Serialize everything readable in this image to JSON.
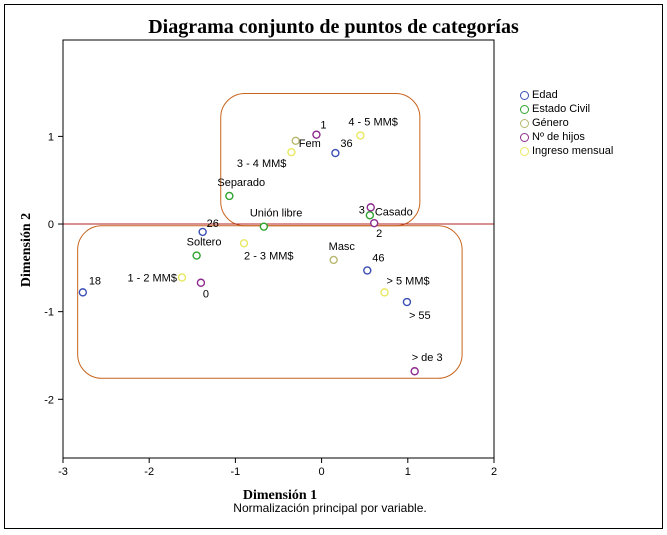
{
  "chart_data": {
    "type": "scatter",
    "title": "Diagrama conjunto de puntos de categorías",
    "subtitle": "Normalización principal por variable.",
    "xlabel": "Dimensión 1",
    "ylabel": "Dimensión 2",
    "xlim": [
      -3,
      2
    ],
    "ylim": [
      -2.67,
      2.1
    ],
    "xticks": [
      -3,
      -2,
      -1,
      0,
      1,
      2
    ],
    "yticks": [
      -2,
      -1,
      0,
      1
    ],
    "reference_line_y": 0,
    "reference_line_color": "#b22222",
    "legend_position": "right",
    "series": [
      {
        "name": "Edad",
        "color": "#3a4fb5",
        "points": [
          {
            "label": "18",
            "x": -2.77,
            "y": -0.78
          },
          {
            "label": "26",
            "x": -1.38,
            "y": -0.09
          },
          {
            "label": "36",
            "x": 0.16,
            "y": 0.81
          },
          {
            "label": "46",
            "x": 0.53,
            "y": -0.53
          },
          {
            "label": "> 55",
            "x": 0.99,
            "y": -0.89
          }
        ]
      },
      {
        "name": "Estado Civil",
        "color": "#2ea42e",
        "points": [
          {
            "label": "Separado",
            "x": -1.07,
            "y": 0.32
          },
          {
            "label": "Unión libre",
            "x": -0.67,
            "y": -0.03
          },
          {
            "label": "Soltero",
            "x": -1.45,
            "y": -0.36
          },
          {
            "label": "Casado",
            "x": 0.56,
            "y": 0.1
          }
        ]
      },
      {
        "name": "Género",
        "color": "#b8b870",
        "points": [
          {
            "label": "Fem",
            "x": -0.3,
            "y": 0.95
          },
          {
            "label": "Masc",
            "x": 0.14,
            "y": -0.41
          }
        ]
      },
      {
        "name": "Nº de hijos",
        "color": "#8e2a8e",
        "points": [
          {
            "label": "1",
            "x": -0.06,
            "y": 1.02
          },
          {
            "label": "3",
            "x": 0.57,
            "y": 0.19
          },
          {
            "label": "2",
            "x": 0.61,
            "y": 0.01
          },
          {
            "label": "0",
            "x": -1.4,
            "y": -0.67
          },
          {
            "label": "> de 3",
            "x": 1.08,
            "y": -1.68
          }
        ]
      },
      {
        "name": "Ingreso mensual",
        "color": "#e8e860",
        "points": [
          {
            "label": "4 - 5 MM$",
            "x": 0.45,
            "y": 1.01
          },
          {
            "label": "3 - 4 MM$",
            "x": -0.35,
            "y": 0.82
          },
          {
            "label": "2 - 3 MM$",
            "x": -0.9,
            "y": -0.22
          },
          {
            "label": "1 - 2 MM$",
            "x": -1.62,
            "y": -0.61
          },
          {
            "label": "> 5 MM$",
            "x": 0.73,
            "y": -0.78
          }
        ]
      }
    ]
  }
}
